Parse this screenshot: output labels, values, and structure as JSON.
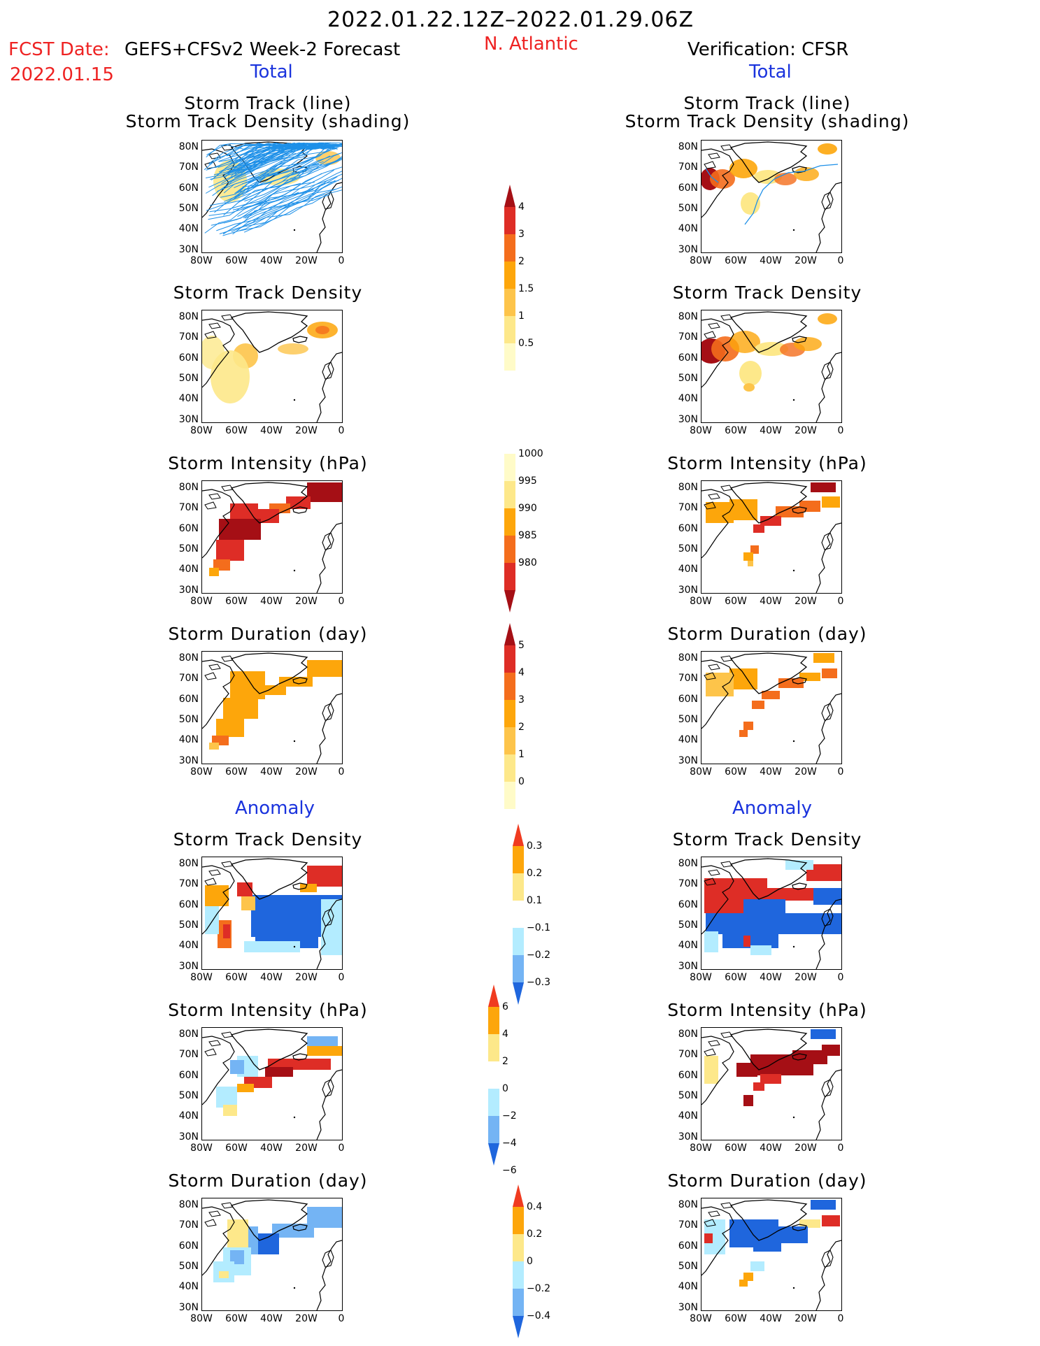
{
  "header": {
    "period": "2022.01.22.12Z–2022.01.29.06Z",
    "fcst_label": "FCST Date:",
    "fcst_model": "GEFS+CFSv2 Week-2 Forecast",
    "fcst_date": "2022.01.15",
    "region": "N. Atlantic",
    "verification": "Verification: CFSR"
  },
  "sections": {
    "total": "Total",
    "anomaly": "Anomaly"
  },
  "panel_titles": {
    "track_line": "Storm Track (line)",
    "track_density_shading": "Storm Track Density (shading)",
    "track_density": "Storm Track Density",
    "intensity": "Storm Intensity (hPa)",
    "duration": "Storm Duration (day)"
  },
  "axes": {
    "lat_ticks": [
      "80N",
      "70N",
      "60N",
      "50N",
      "40N",
      "30N"
    ],
    "lon_ticks": [
      "80W",
      "60W",
      "40W",
      "20W",
      "0"
    ]
  },
  "colorbars": {
    "track_density_total": {
      "labels": [
        "4",
        "3",
        "2",
        "1.5",
        "1",
        "0.5"
      ],
      "colors": [
        "#a50f15",
        "#de2d26",
        "#f46d1c",
        "#fda60b",
        "#fdc44a",
        "#fde88a",
        "#fffbc8"
      ]
    },
    "intensity_total": {
      "labels": [
        "1000",
        "995",
        "990",
        "985",
        "980"
      ],
      "colors": [
        "#fffbc8",
        "#fde88a",
        "#fda60b",
        "#f46d1c",
        "#de2d26",
        "#a50f15"
      ]
    },
    "duration_total": {
      "labels": [
        "5",
        "4",
        "3",
        "2",
        "1",
        "0"
      ],
      "colors": [
        "#a50f15",
        "#de2d26",
        "#f46d1c",
        "#fda60b",
        "#fdc44a",
        "#fde88a",
        "#fffbc8"
      ]
    },
    "track_density_anom": {
      "labels": [
        "0.3",
        "0.2",
        "0.1",
        "−0.1",
        "−0.2",
        "−0.3"
      ],
      "colors": [
        "#f03b20",
        "#fda60b",
        "#fde88a",
        "#ffffff",
        "#b3ecff",
        "#74b4f4",
        "#1f66dd"
      ]
    },
    "intensity_anom": {
      "labels": [
        "6",
        "4",
        "2",
        "0",
        "−2",
        "−4",
        "−6"
      ],
      "colors": [
        "#f03b20",
        "#fda60b",
        "#fde88a",
        "#ffffff",
        "#b3ecff",
        "#74b4f4",
        "#1f66dd"
      ]
    },
    "duration_anom": {
      "labels": [
        "0.4",
        "0.2",
        "0",
        "−0.2",
        "−0.4"
      ],
      "colors": [
        "#f03b20",
        "#fda60b",
        "#fde88a",
        "#b3ecff",
        "#74b4f4",
        "#1f66dd"
      ]
    }
  }
}
